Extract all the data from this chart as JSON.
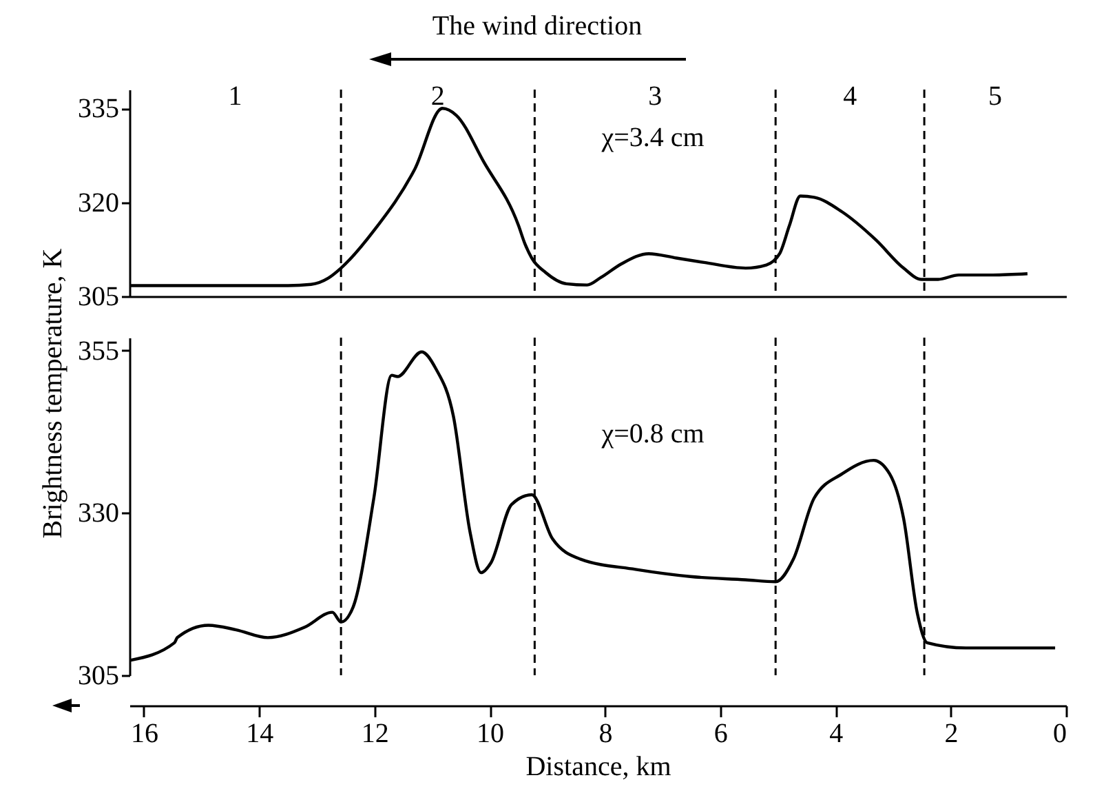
{
  "chart_data": [
    {
      "type": "line",
      "annotations": [
        "The wind direction",
        "1",
        "2",
        "3",
        "4",
        "5",
        "χ=3.4 cm"
      ],
      "xlim": [
        16.25,
        0
      ],
      "ylim": [
        305,
        338
      ],
      "yticks": [
        305,
        320,
        335
      ],
      "tick_labels": "y",
      "ref_lines": [
        {
          "axis": "x",
          "value": 12.58,
          "line_style": "dashed"
        },
        {
          "axis": "x",
          "value": 9.22,
          "line_style": "dashed"
        },
        {
          "axis": "x",
          "value": 5.04,
          "line_style": "dashed"
        },
        {
          "axis": "x",
          "value": 2.46,
          "line_style": "dashed"
        }
      ],
      "series": [
        {
          "color": "#000000",
          "x": [
            16.24,
            15,
            14,
            13.5,
            13.1,
            12.8,
            12.58,
            12.0,
            11.3,
            10.82,
            10.58,
            10.1,
            9.5,
            9.39,
            9.27,
            9.03,
            8.67,
            8.31,
            8.07,
            7.71,
            7.24,
            6.76,
            6.28,
            5.56,
            5.2,
            4.97,
            4.8,
            4.61,
            4.37,
            3.89,
            3.3,
            2.82,
            2.51,
            2.22,
            1.86,
            1.27,
            0.67
          ],
          "values": [
            306.7,
            306.7,
            306.7,
            306.7,
            306.9,
            307.9,
            309.5,
            315.6,
            325.3,
            335,
            333.9,
            326.4,
            316.3,
            313.4,
            311.1,
            308.8,
            307,
            306.8,
            308,
            310.2,
            311.8,
            311.1,
            310.4,
            309.5,
            310,
            311.8,
            316.3,
            321,
            320.8,
            318.5,
            314,
            309.5,
            307.7,
            307.7,
            308.4,
            308.4,
            308.6
          ]
        }
      ]
    },
    {
      "type": "line",
      "xlabel": "Distance, km",
      "ylabel": "Brightness temperature, K",
      "annotations": [
        "χ=0.8 cm"
      ],
      "xlim": [
        16.25,
        0
      ],
      "ylim": [
        305,
        357
      ],
      "xticks": [
        16,
        14,
        12,
        10,
        8,
        6,
        4,
        2,
        0
      ],
      "yticks": [
        305,
        330,
        355
      ],
      "ref_lines": [
        {
          "axis": "x",
          "value": 12.58,
          "line_style": "dashed"
        },
        {
          "axis": "x",
          "value": 9.22,
          "line_style": "dashed"
        },
        {
          "axis": "x",
          "value": 5.04,
          "line_style": "dashed"
        },
        {
          "axis": "x",
          "value": 2.46,
          "line_style": "dashed"
        }
      ],
      "series": [
        {
          "color": "#000000",
          "x": [
            16.24,
            15.47,
            15.42,
            14.88,
            14.4,
            13.85,
            13.21,
            12.73,
            12.58,
            12.37,
            12.01,
            11.7,
            11.6,
            11.18,
            10.94,
            10.63,
            10.34,
            10.15,
            9.98,
            9.62,
            9.27,
            8.91,
            8.43,
            7.47,
            6.52,
            5.56,
            5.04,
            4.73,
            4.37,
            3.89,
            3.34,
            3.06,
            2.82,
            2.58,
            2.41,
            1.74,
            0.19
          ],
          "values": [
            307.3,
            310,
            310.8,
            312.7,
            312,
            310.8,
            312.4,
            314.7,
            313.2,
            315.5,
            332.3,
            351.2,
            351,
            354.8,
            352.3,
            344.9,
            327,
            320.8,
            322.3,
            331.3,
            332.8,
            326,
            322.9,
            321.3,
            320.2,
            319.7,
            319.4,
            322.9,
            332.3,
            336,
            338.1,
            336,
            329.2,
            314.5,
            310,
            309.2,
            309.2
          ]
        }
      ]
    }
  ]
}
